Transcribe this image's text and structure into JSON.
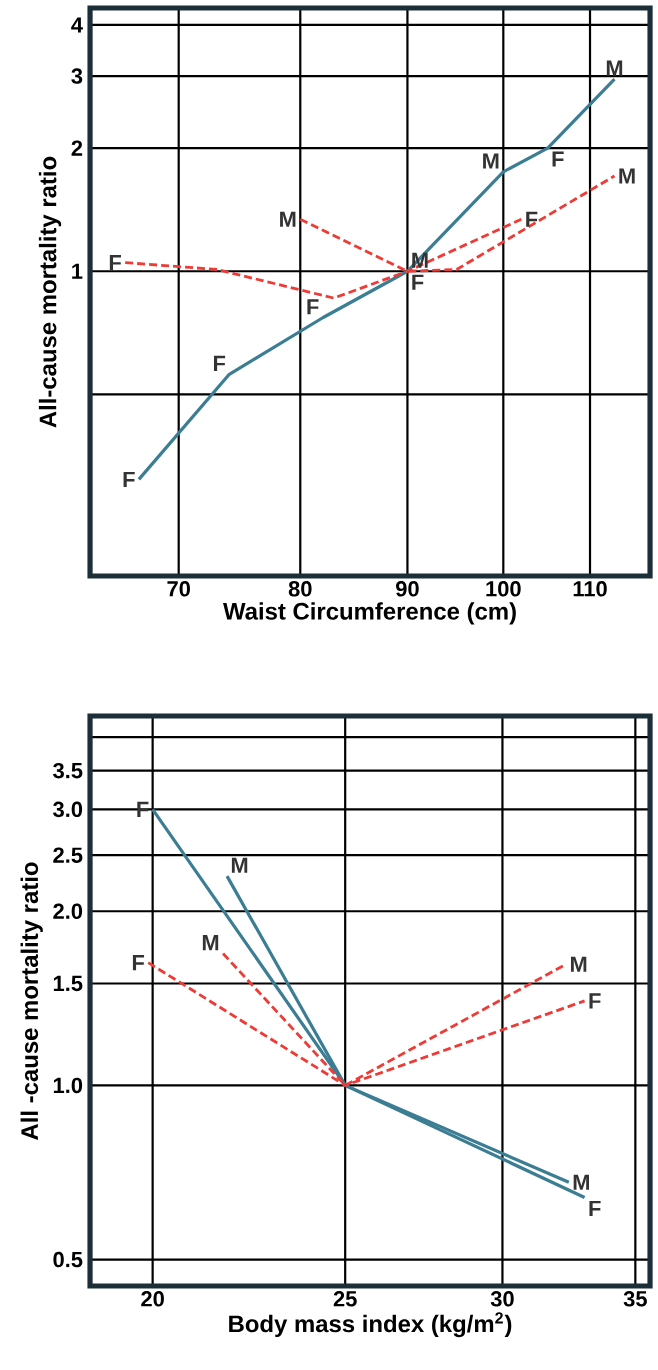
{
  "chart_data": [
    {
      "type": "line",
      "log": "xy",
      "grid": true,
      "xlabel": "Waist Circumference (cm)",
      "ylabel": "All-cause mortality ratio",
      "xlim": [
        63.5,
        117.5
      ],
      "ylim": [
        0.18,
        4.4
      ],
      "xticks": [
        70,
        80,
        90,
        100,
        110
      ],
      "yticks": [
        {
          "value": 0.5,
          "label": null
        },
        1,
        2,
        3,
        4
      ],
      "series": [
        {
          "color": "#3b7d93",
          "line_style": "solid",
          "x": [
            67,
            74,
            82,
            90,
            100,
            105,
            113
          ],
          "values": [
            0.31,
            0.56,
            0.77,
            1,
            1.75,
            2.0,
            2.95
          ]
        },
        {
          "color": "#ee3b36",
          "line_style": "dashed",
          "x": [
            66,
            73,
            83,
            90,
            102
          ],
          "values": [
            1.05,
            1.01,
            0.86,
            1,
            1.34
          ]
        },
        {
          "color": "#ee3b36",
          "line_style": "dashed",
          "x": [
            80,
            90,
            95,
            113
          ],
          "values": [
            1.34,
            1,
            1.01,
            1.71
          ]
        }
      ],
      "annotations": [
        {
          "text": "F",
          "x": 67,
          "y": 0.31
        },
        {
          "text": "F",
          "x": 74,
          "y": 0.56
        },
        {
          "text": "F",
          "x": 82,
          "y": 0.77
        },
        {
          "text": "F",
          "x": 90,
          "y": 1
        },
        {
          "text": "M",
          "x": 90,
          "y": 1
        },
        {
          "text": "F",
          "x": 66,
          "y": 1.05
        },
        {
          "text": "M",
          "x": 80,
          "y": 1.34
        },
        {
          "text": "M",
          "x": 100,
          "y": 1.75
        },
        {
          "text": "F",
          "x": 105,
          "y": 2.0
        },
        {
          "text": "F",
          "x": 102,
          "y": 1.34
        },
        {
          "text": "M",
          "x": 113,
          "y": 2.95
        },
        {
          "text": "M",
          "x": 113,
          "y": 1.71
        }
      ]
    },
    {
      "type": "line",
      "log": "xy",
      "grid": true,
      "xlabel": "Body mass index (kg/m$^{2}$)",
      "ylabel": "All -cause mortality ratio",
      "xlim": [
        18.6,
        35.6
      ],
      "ylim": [
        0.45,
        4.35
      ],
      "xticks": [
        20,
        25,
        30,
        35
      ],
      "yticks": [
        0.5,
        {
          "value": 1,
          "label": "1.0"
        },
        1.5,
        {
          "value": 2,
          "label": "2.0"
        },
        2.5,
        {
          "value": 3,
          "label": "3.0"
        },
        3.5,
        {
          "value": 4,
          "label": null
        }
      ],
      "series": [
        {
          "color": "#3b7d93",
          "line_style": "solid",
          "x": [
            20,
            25,
            33
          ],
          "values": [
            3.0,
            1,
            0.64
          ]
        },
        {
          "color": "#3b7d93",
          "line_style": "solid",
          "x": [
            21.8,
            25,
            32.4
          ],
          "values": [
            2.3,
            1,
            0.68
          ]
        },
        {
          "color": "#ee3b36",
          "line_style": "dashed",
          "x": [
            19.9,
            25,
            33
          ],
          "values": [
            1.63,
            1,
            1.4
          ]
        },
        {
          "color": "#ee3b36",
          "line_style": "dashed",
          "x": [
            21.7,
            25,
            32.3
          ],
          "values": [
            1.69,
            1,
            1.62
          ]
        }
      ],
      "annotations": [
        {
          "text": "F",
          "x": 20,
          "y": 3.0
        },
        {
          "text": "M",
          "x": 21.8,
          "y": 2.3
        },
        {
          "text": "M",
          "x": 21.7,
          "y": 1.69
        },
        {
          "text": "F",
          "x": 19.9,
          "y": 1.63
        },
        {
          "text": "M",
          "x": 32.3,
          "y": 1.62
        },
        {
          "text": "F",
          "x": 33,
          "y": 1.4
        },
        {
          "text": "M",
          "x": 32.4,
          "y": 0.68
        },
        {
          "text": "F",
          "x": 33,
          "y": 0.64
        }
      ]
    }
  ]
}
